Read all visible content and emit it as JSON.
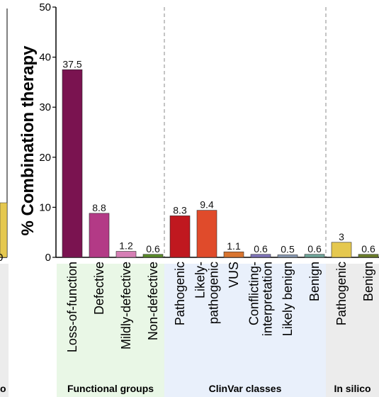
{
  "chart_data": {
    "type": "bar",
    "ylabel": "% Combination therapy",
    "ylim": [
      0,
      50
    ],
    "yticks": [
      0,
      10,
      20,
      30,
      40,
      50
    ],
    "groups": [
      {
        "name": "Functional groups",
        "background": "#e9f7e6",
        "bars": [
          {
            "label": "Loss-of-function",
            "value": 37.5,
            "value_label": "37.5",
            "color": "#7a1350"
          },
          {
            "label": "Defective",
            "value": 8.8,
            "value_label": "8.8",
            "color": "#b33a86"
          },
          {
            "label": "Mildly-defective",
            "value": 1.2,
            "value_label": "1.2",
            "color": "#d67fb5"
          },
          {
            "label": "Non-defective",
            "value": 0.6,
            "value_label": "0.6",
            "color": "#5a8a2a"
          }
        ]
      },
      {
        "name": "ClinVar classes",
        "background": "#e9f0fb",
        "bars": [
          {
            "label": "Pathogenic",
            "value": 8.3,
            "value_label": "8.3",
            "color": "#c0181f"
          },
          {
            "label": "Likely-\npathogenic",
            "value": 9.4,
            "value_label": "9.4",
            "color": "#e04b2b"
          },
          {
            "label": "VUS",
            "value": 1.1,
            "value_label": "1.1",
            "color": "#d9742f"
          },
          {
            "label": "Conflicting-\ninterpretation",
            "value": 0.6,
            "value_label": "0.6",
            "color": "#7e74b8"
          },
          {
            "label": "Likely benign",
            "value": 0.5,
            "value_label": "0.5",
            "color": "#8a9bb5"
          },
          {
            "label": "Benign",
            "value": 0.6,
            "value_label": "0.6",
            "color": "#6fa59a"
          }
        ]
      },
      {
        "name": "In silico",
        "background": "#ececec",
        "bars": [
          {
            "label": "Pathogenic",
            "value": 3,
            "value_label": "3",
            "color": "#e5c84f"
          },
          {
            "label": "Benign",
            "value": 0.6,
            "value_label": "0.6",
            "color": "#6b7d2a"
          }
        ]
      }
    ]
  },
  "left_edge": {
    "tick_label": "0",
    "cut_char": "o",
    "bar_color": "#e5c84f"
  }
}
